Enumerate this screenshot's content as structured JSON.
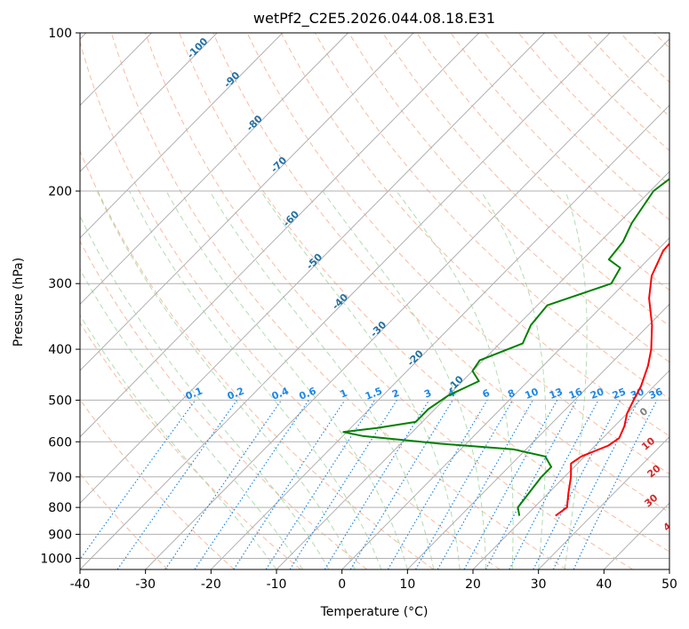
{
  "chart_data": {
    "type": "skew-t",
    "title": "wetPf2_C2E5.2026.044.08.18.E31",
    "xlabel": "Temperature (°C)",
    "ylabel": "Pressure (hPa)",
    "xlim": [
      -40,
      50
    ],
    "ylim": [
      1050,
      100
    ],
    "x_ticks": [
      -40,
      -30,
      -20,
      -10,
      0,
      10,
      20,
      30,
      40,
      50
    ],
    "y_ticks": [
      100,
      200,
      300,
      400,
      500,
      600,
      700,
      800,
      900,
      1000
    ],
    "colors": {
      "temperature": "#ff0000",
      "dewpoint": "#008000",
      "isotherm": "#b0b0b0",
      "dry_adiabat": "#f4a582",
      "moist_adiabat": "#8fce8f",
      "mixing_ratio": "#1e88e5",
      "isotherm_label": "#2471a3",
      "dry_label": "#d62728",
      "grid": "#b0b0b0"
    },
    "isotherm_labels": [
      "-100",
      "-90",
      "-80",
      "-70",
      "-60",
      "-50",
      "-40",
      "-30",
      "-20",
      "-10"
    ],
    "mixing_ratio_labels": [
      "0.1",
      "0.2",
      "0.4",
      "0.6",
      "1",
      "1.5",
      "2",
      "3",
      "4",
      "6",
      "8",
      "10",
      "13",
      "16",
      "20",
      "25",
      "30",
      "36"
    ],
    "dry_adiabat_labels": [
      "0",
      "10",
      "20",
      "30",
      "40"
    ],
    "series": [
      {
        "name": "Temperature",
        "points": [
          {
            "p": 830,
            "t": 24.5
          },
          {
            "p": 800,
            "t": 25.0
          },
          {
            "p": 750,
            "t": 23.0
          },
          {
            "p": 700,
            "t": 21.0
          },
          {
            "p": 660,
            "t": 19.0
          },
          {
            "p": 640,
            "t": 19.5
          },
          {
            "p": 610,
            "t": 22.0
          },
          {
            "p": 590,
            "t": 22.5
          },
          {
            "p": 560,
            "t": 21.5
          },
          {
            "p": 530,
            "t": 20.0
          },
          {
            "p": 500,
            "t": 19.0
          },
          {
            "p": 470,
            "t": 18.0
          },
          {
            "p": 430,
            "t": 16.0
          },
          {
            "p": 400,
            "t": 14.0
          },
          {
            "p": 360,
            "t": 10.5
          },
          {
            "p": 320,
            "t": 6.0
          },
          {
            "p": 290,
            "t": 3.0
          },
          {
            "p": 260,
            "t": 1.0
          },
          {
            "p": 230,
            "t": 0.5
          },
          {
            "p": 200,
            "t": 0.0
          },
          {
            "p": 180,
            "t": 0.5
          },
          {
            "p": 160,
            "t": 1.5
          },
          {
            "p": 140,
            "t": 3.0
          },
          {
            "p": 125,
            "t": 4.0
          },
          {
            "p": 115,
            "t": 8.5
          },
          {
            "p": 105,
            "t": 11.5
          },
          {
            "p": 100,
            "t": 12.5
          }
        ]
      },
      {
        "name": "Dewpoint",
        "points": [
          {
            "p": 830,
            "t": 19.0
          },
          {
            "p": 800,
            "t": 17.5
          },
          {
            "p": 750,
            "t": 17.0
          },
          {
            "p": 700,
            "t": 16.5
          },
          {
            "p": 670,
            "t": 16.5
          },
          {
            "p": 640,
            "t": 14.0
          },
          {
            "p": 620,
            "t": 8.0
          },
          {
            "p": 605,
            "t": -4.0
          },
          {
            "p": 585,
            "t": -17.0
          },
          {
            "p": 575,
            "t": -20.5
          },
          {
            "p": 565,
            "t": -16.0
          },
          {
            "p": 550,
            "t": -11.0
          },
          {
            "p": 520,
            "t": -11.0
          },
          {
            "p": 490,
            "t": -10.0
          },
          {
            "p": 460,
            "t": -7.5
          },
          {
            "p": 440,
            "t": -10.0
          },
          {
            "p": 420,
            "t": -10.5
          },
          {
            "p": 390,
            "t": -6.5
          },
          {
            "p": 360,
            "t": -8.0
          },
          {
            "p": 330,
            "t": -8.5
          },
          {
            "p": 300,
            "t": -2.0
          },
          {
            "p": 280,
            "t": -3.0
          },
          {
            "p": 270,
            "t": -6.0
          },
          {
            "p": 250,
            "t": -6.5
          },
          {
            "p": 230,
            "t": -8.0
          },
          {
            "p": 200,
            "t": -9.5
          },
          {
            "p": 175,
            "t": -8.0
          },
          {
            "p": 155,
            "t": -10.0
          },
          {
            "p": 145,
            "t": -10.0
          },
          {
            "p": 135,
            "t": -7.0
          },
          {
            "p": 125,
            "t": -4.0
          },
          {
            "p": 115,
            "t": -2.0
          },
          {
            "p": 105,
            "t": 1.0
          },
          {
            "p": 100,
            "t": 3.5
          }
        ]
      }
    ]
  }
}
